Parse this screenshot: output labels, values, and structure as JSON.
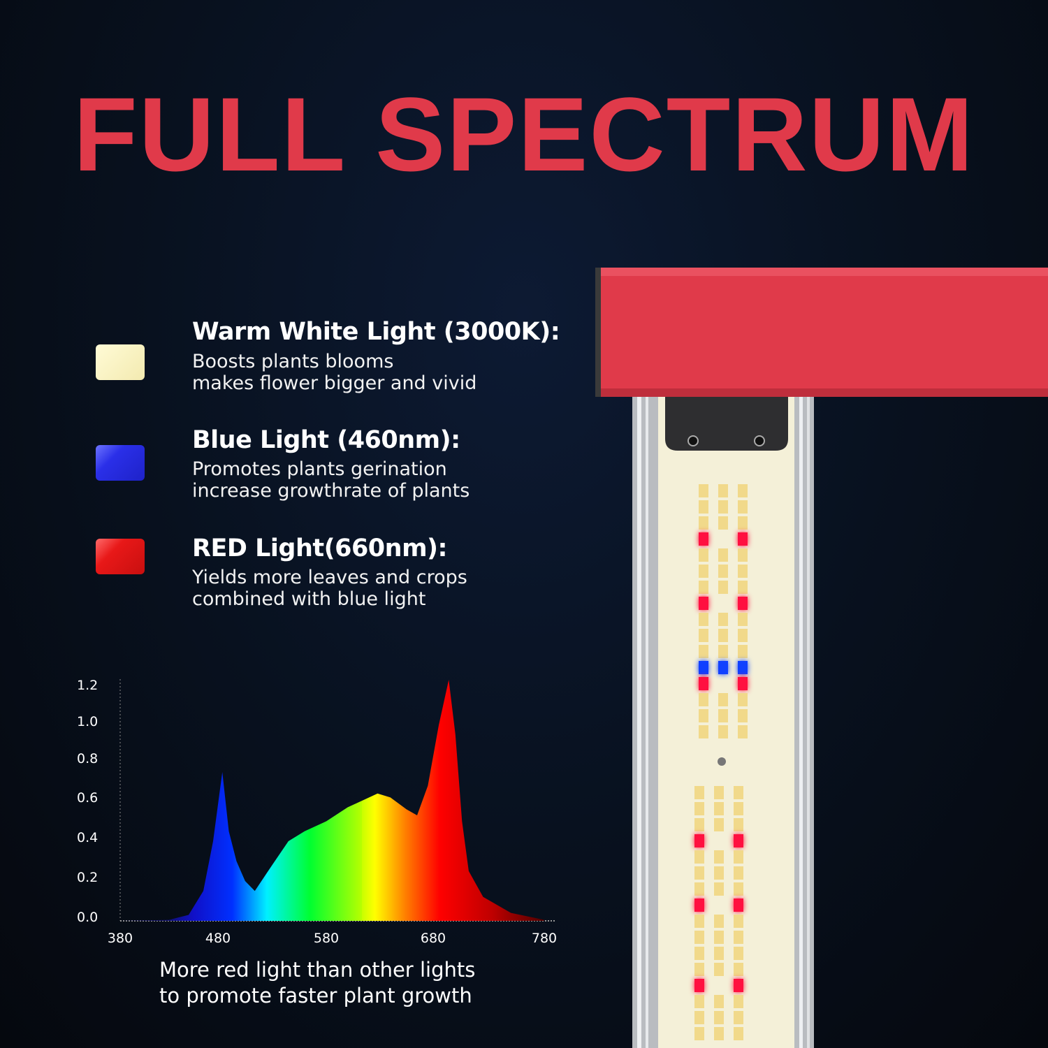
{
  "title": "FULL SPECTRUM",
  "legend": [
    {
      "swatch_color": "#fbf6c4",
      "title": "Warm White Light (3000K):",
      "lines": [
        "Boosts plants blooms",
        "makes flower bigger and vivid"
      ]
    },
    {
      "swatch_color": "#2a2fe8",
      "title": "Blue Light (460nm):",
      "lines": [
        "Promotes plants gerination",
        "increase growthrate of plants"
      ]
    },
    {
      "swatch_color": "#e81818",
      "title": "RED Light(660nm):",
      "lines": [
        "Yields more leaves and crops",
        "combined with blue light"
      ]
    }
  ],
  "caption": [
    "More red light than other lights",
    "to promote faster plant growth"
  ],
  "colors": {
    "title": "#e03a4a",
    "fixture": "#e03a4a",
    "background": "#08111f"
  },
  "chart_data": {
    "type": "area",
    "title": "",
    "xlabel": "",
    "ylabel": "",
    "xlim": [
      380,
      780
    ],
    "ylim": [
      0,
      1.2
    ],
    "x_ticks": [
      "380",
      "480",
      "580",
      "680",
      "780"
    ],
    "y_ticks": [
      "1.2",
      "1.0",
      "0.8",
      "0.6",
      "0.4",
      "0.2",
      "0.0"
    ],
    "grid": false,
    "fill": "visible-spectrum gradient",
    "x": [
      380,
      430,
      450,
      465,
      475,
      484,
      490,
      497,
      505,
      514,
      530,
      545,
      560,
      580,
      600,
      628,
      640,
      655,
      665,
      675,
      685,
      694,
      700,
      706,
      712,
      725,
      750,
      780
    ],
    "y": [
      0,
      0.005,
      0.03,
      0.15,
      0.4,
      0.75,
      0.45,
      0.3,
      0.2,
      0.15,
      0.28,
      0.4,
      0.45,
      0.5,
      0.57,
      0.64,
      0.62,
      0.56,
      0.53,
      0.68,
      1.0,
      1.25,
      0.95,
      0.5,
      0.25,
      0.12,
      0.04,
      0.005
    ]
  }
}
